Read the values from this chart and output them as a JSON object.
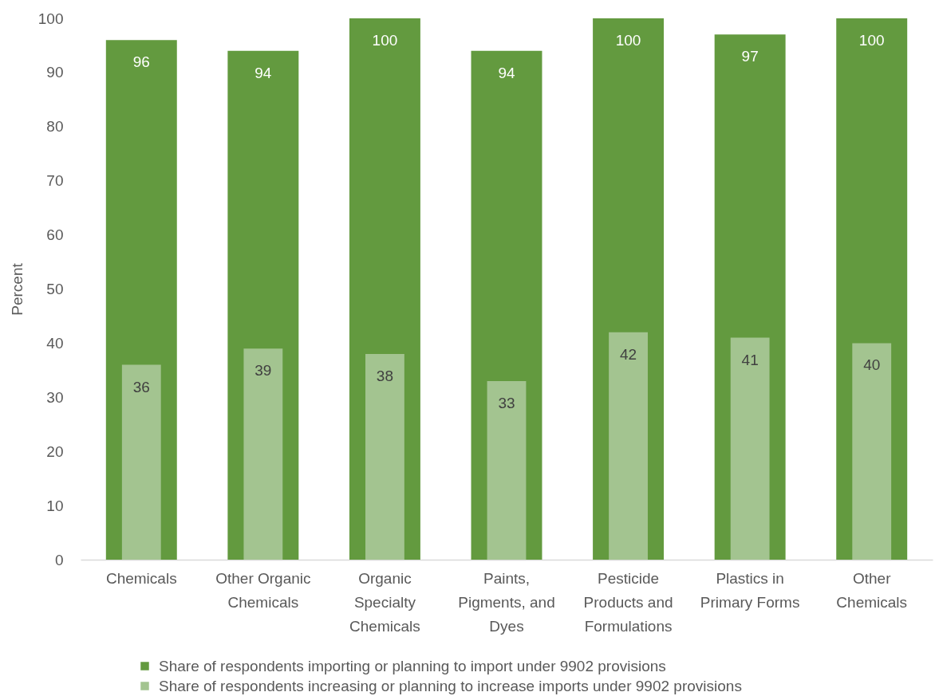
{
  "chart_data": {
    "type": "bar",
    "ylabel": "Percent",
    "categories": [
      "Chemicals",
      "Other Organic Chemicals",
      "Organic Specialty Chemicals",
      "Paints, Pigments, and Dyes",
      "Pesticide Products and Formulations",
      "Plastics in Primary Forms",
      "Other Chemicals"
    ],
    "series": [
      {
        "name": "Share of respondents importing or planning to import under 9902 provisions",
        "color": "#639a3f",
        "values": [
          96,
          94,
          100,
          94,
          100,
          97,
          100
        ]
      },
      {
        "name": "Share of respondents increasing or planning to increase imports under 9902 provisions",
        "color": "#a3c490",
        "values": [
          36,
          39,
          38,
          33,
          42,
          41,
          40
        ]
      }
    ],
    "ylim": [
      0,
      100
    ],
    "yticks": [
      0,
      10,
      20,
      30,
      40,
      50,
      60,
      70,
      80,
      90,
      100
    ],
    "data_labels": true,
    "legend": "bottom"
  }
}
